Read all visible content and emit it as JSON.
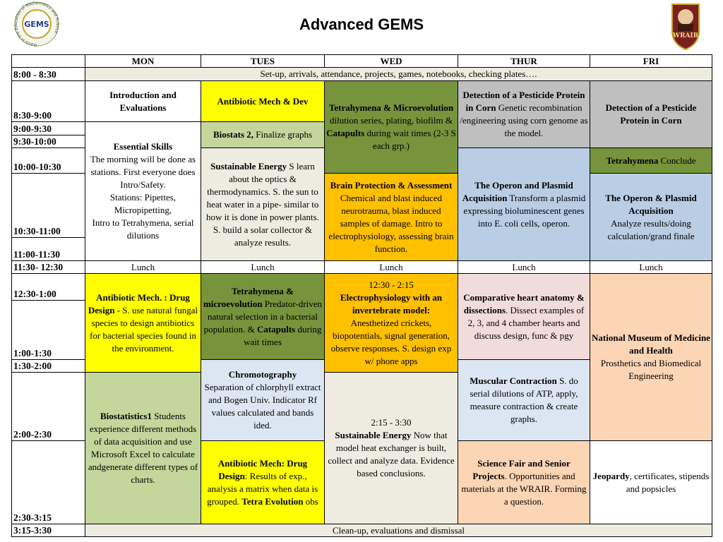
{
  "header": {
    "title": "Advanced GEMS",
    "logo_left": {
      "ring": "Gains in the Education of Mathematics and Science",
      "text": "GEMS"
    },
    "logo_right": {
      "text": "WRAIR"
    }
  },
  "table": {
    "days": [
      "MON",
      "TUES",
      "WED",
      "THUR",
      "FRI"
    ],
    "times": [
      "8:00 - 8:30",
      "8:30-9:00",
      "9:00-9:30",
      "9:30-10:00",
      "10:00-10:30",
      "10:30-11:00",
      "11:00-11:30",
      "11:30- 12:30",
      "12:30-1:00",
      "1:00-1:30",
      "1:30-2:00",
      "2:00-2:30",
      "2:30-3:15",
      "3:15-3:30"
    ],
    "cells": [
      [
        [
          {
            "t": "Set-up, arrivals, attendance, projects, games, notebooks, checking plates…."
          }
        ]
      ],
      [
        [
          {
            "b": "Introduction and Evaluations"
          }
        ]
      ],
      [
        [
          {
            "b": "Antibiotic Mech & Dev"
          }
        ]
      ],
      [
        [
          {
            "b": "Tetrahymena & Microevolution"
          },
          {
            "t": " dilution series, plating, biofilm & "
          },
          {
            "b": "Catapults"
          },
          {
            "t": " during wait times (2-3 S each grp.)"
          }
        ]
      ],
      [
        [
          {
            "b": "Detection of a Pesticide Protein in Corn"
          },
          {
            "t": " Genetic recombination /engineering using corn genome as the model."
          }
        ]
      ],
      [
        [
          {
            "b": "Detection of a Pesticide Protein in Corn"
          }
        ]
      ],
      [
        [
          {
            "b": "Essential Skills"
          }
        ],
        [
          {
            "t": "The morning will be done as stations. First everyone does Intro/Safety."
          }
        ],
        [
          {
            "t": "Stations: Pipettes, Micropipetting,"
          }
        ],
        [
          {
            "t": "Intro to Tetrahymena, serial dilutions"
          }
        ]
      ],
      [
        [
          {
            "b": "Biostats 2,"
          },
          {
            "t": " Finalize graphs"
          }
        ]
      ],
      [
        [
          {
            "b": "Sustainable Energy"
          },
          {
            "t": " S learn about the optics & thermodynamics. S. the sun to heat water in a pipe- similar to how it is done in power plants. S. build a solar collector & analyze results."
          }
        ]
      ],
      [
        [
          {
            "b": "Brain Protection & Assessment"
          },
          {
            "t": " Chemical and blast induced neurotrauma, blast induced samples of damage. Intro to electrophysiology, assessing brain function."
          }
        ]
      ],
      [
        [
          {
            "b": "The Operon and Plasmid Acquisition"
          },
          {
            "t": " Transform a plasmid expressing bioluminescent genes into E. coli cells, operon."
          }
        ]
      ],
      [
        [
          {
            "b": "Tetrahymena"
          },
          {
            "t": " Conclude"
          }
        ]
      ],
      [
        [
          {
            "b": "The Operon & Plasmid Acquisition"
          }
        ],
        [
          {
            "t": "Analyze results/doing calculation/grand finale"
          }
        ]
      ],
      [
        [
          {
            "t": "Lunch"
          }
        ]
      ],
      [
        [
          {
            "t": "Lunch"
          }
        ]
      ],
      [
        [
          {
            "t": "Lunch"
          }
        ]
      ],
      [
        [
          {
            "t": "Lunch"
          }
        ]
      ],
      [
        [
          {
            "t": "Lunch"
          }
        ]
      ],
      [
        [
          {
            "b": "Antibiotic Mech. : Drug Design"
          },
          {
            "t": " - S. use natural fungal species to design antibiotics for bacterial species found in the environment."
          }
        ]
      ],
      [
        [
          {
            "b": "Tetrahymena & microevolution"
          },
          {
            "t": " Predator-driven natural selection in a bacterial population. & "
          },
          {
            "b": "Catapults"
          },
          {
            "t": " during wait times"
          }
        ]
      ],
      [
        [
          {
            "t": "12:30 - 2:15"
          }
        ],
        [
          {
            "b": "Electrophysiology with an invertebrate model:"
          }
        ],
        [
          {
            "t": "Anesthetized crickets, biopotentials, signal generation, observe responses. S. design exp w/ phone apps"
          }
        ]
      ],
      [
        [
          {
            "b": "Comparative heart anatomy & dissections"
          },
          {
            "t": ". Dissect examples of 2, 3, and 4 chamber hearts and discuss design, func & pgy"
          }
        ]
      ],
      [
        [
          {
            "b": "National Museum of Medicine and Health"
          }
        ],
        [
          {
            "t": "Prosthetics and Biomedical Engineering"
          }
        ]
      ],
      [
        [
          {
            "b": "Chromotography"
          }
        ],
        [
          {
            "t": "Separation of chlorphyll extract and Bogen Univ. Indicator Rf values calculated and bands ided."
          }
        ]
      ],
      [
        [
          {
            "b": "Muscular Contraction"
          },
          {
            "t": " S. do serial dilutions of ATP, apply, measure contraction & create graphs."
          }
        ]
      ],
      [
        [
          {
            "b": "Biostatistics1"
          },
          {
            "t": " Students experience different methods of data acquisition and use Microsoft Excel to calculate andgenerate different types of charts."
          }
        ]
      ],
      [
        [
          {
            "t": "2:15 - 3:30"
          }
        ],
        [
          {
            "b": "Sustainable Energy"
          },
          {
            "t": " Now that model heat exchanger is built, collect and analyze data. Evidence based conclusions."
          }
        ]
      ],
      [
        [
          {
            "b": "Antibiotic Mech: Drug Design"
          },
          {
            "t": ": Results of exp., analysis a matrix when data is grouped. "
          },
          {
            "b": "Tetra Evolution"
          },
          {
            "t": " obs"
          }
        ]
      ],
      [
        [
          {
            "b": "Science Fair and Senior Projects"
          },
          {
            "t": ". Opportunities and materials at the WRAIR. Forming a question."
          }
        ]
      ],
      [
        [
          {
            "b": "Jeopardy"
          },
          {
            "t": ", certificates, stipends and popsicles"
          }
        ]
      ],
      [
        [
          {
            "t": "Clean-up, evaluations and dismissal"
          }
        ]
      ]
    ]
  }
}
